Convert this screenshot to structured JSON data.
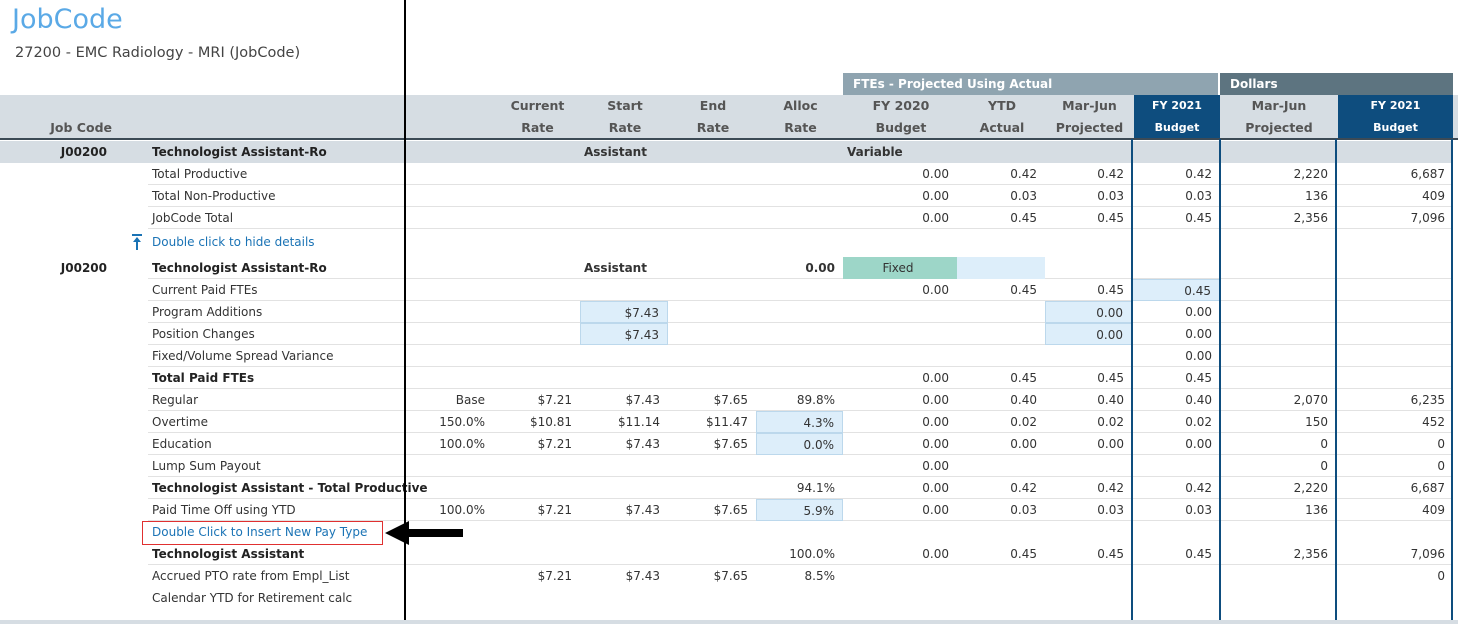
{
  "header": {
    "title": "JobCode",
    "subtitle": "27200 - EMC Radiology - MRI (JobCode)"
  },
  "table": {
    "groups": [
      "FTEs - Projected Using Actual",
      "Dollars"
    ],
    "columns": [
      [
        "Job Code"
      ],
      null,
      null,
      null,
      [
        "Current",
        "Rate"
      ],
      [
        "Start",
        "Rate"
      ],
      [
        "End",
        "Rate"
      ],
      [
        "Alloc",
        "Rate"
      ],
      [
        "FY 2020",
        "Budget"
      ],
      [
        "YTD",
        "Actual"
      ],
      [
        "Mar-Jun",
        "Projected"
      ],
      [
        "FY 2021",
        "Budget"
      ],
      [
        "Mar-Jun",
        "Projected"
      ],
      [
        "FY 2021",
        "Budget"
      ]
    ],
    "rows": [
      [
        "J00200",
        null,
        "Technologist Assistant-Ro",
        null,
        null,
        "Assistant",
        null,
        null,
        "Variable",
        null,
        null,
        null,
        null,
        null
      ],
      [
        null,
        null,
        "Total Productive",
        null,
        null,
        null,
        null,
        null,
        "0.00",
        "0.42",
        "0.42",
        "0.42",
        "2,220",
        "6,687"
      ],
      [
        null,
        null,
        "Total Non-Productive",
        null,
        null,
        null,
        null,
        null,
        "0.00",
        "0.03",
        "0.03",
        "0.03",
        "136",
        "409"
      ],
      [
        null,
        null,
        "JobCode Total",
        null,
        null,
        null,
        null,
        null,
        "0.00",
        "0.45",
        "0.45",
        "0.45",
        "2,356",
        "7,096"
      ],
      [
        null,
        null,
        "Double click to hide details",
        null,
        null,
        null,
        null,
        null,
        null,
        null,
        null,
        null,
        null,
        null
      ],
      [
        "J00200",
        null,
        "Technologist Assistant-Ro",
        null,
        null,
        "Assistant",
        null,
        "0.00",
        "Fixed",
        null,
        null,
        null,
        null,
        null
      ],
      [
        null,
        null,
        "Current Paid FTEs",
        null,
        null,
        null,
        null,
        null,
        "0.00",
        "0.45",
        "0.45",
        "0.45",
        null,
        null
      ],
      [
        null,
        null,
        "Program Additions",
        null,
        null,
        "$7.43",
        null,
        null,
        null,
        null,
        "0.00",
        "0.00",
        null,
        null
      ],
      [
        null,
        null,
        "Position Changes",
        null,
        null,
        "$7.43",
        null,
        null,
        null,
        null,
        "0.00",
        "0.00",
        null,
        null
      ],
      [
        null,
        null,
        "Fixed/Volume Spread Variance",
        null,
        null,
        null,
        null,
        null,
        null,
        null,
        null,
        "0.00",
        null,
        null
      ],
      [
        null,
        null,
        "Total Paid FTEs",
        null,
        null,
        null,
        null,
        null,
        "0.00",
        "0.45",
        "0.45",
        "0.45",
        null,
        null
      ],
      [
        null,
        null,
        "Regular",
        "Base",
        "$7.21",
        "$7.43",
        "$7.65",
        "89.8%",
        "0.00",
        "0.40",
        "0.40",
        "0.40",
        "2,070",
        "6,235"
      ],
      [
        null,
        null,
        "Overtime",
        "150.0%",
        "$10.81",
        "$11.14",
        "$11.47",
        "4.3%",
        "0.00",
        "0.02",
        "0.02",
        "0.02",
        "150",
        "452"
      ],
      [
        null,
        null,
        "Education",
        "100.0%",
        "$7.21",
        "$7.43",
        "$7.65",
        "0.0%",
        "0.00",
        "0.00",
        "0.00",
        "0.00",
        "0",
        "0"
      ],
      [
        null,
        null,
        "Lump Sum Payout",
        null,
        null,
        null,
        null,
        null,
        "0.00",
        null,
        null,
        null,
        "0",
        "0"
      ],
      [
        null,
        null,
        "Technologist Assistant - Total Productive",
        null,
        null,
        null,
        null,
        "94.1%",
        "0.00",
        "0.42",
        "0.42",
        "0.42",
        "2,220",
        "6,687"
      ],
      [
        null,
        null,
        "Paid Time Off using YTD",
        "100.0%",
        "$7.21",
        "$7.43",
        "$7.65",
        "5.9%",
        "0.00",
        "0.03",
        "0.03",
        "0.03",
        "136",
        "409"
      ],
      [
        null,
        null,
        "Double Click to Insert New Pay Type",
        null,
        null,
        null,
        null,
        null,
        null,
        null,
        null,
        null,
        null,
        null
      ],
      [
        null,
        null,
        "Technologist Assistant",
        null,
        null,
        null,
        null,
        "100.0%",
        "0.00",
        "0.45",
        "0.45",
        "0.45",
        "2,356",
        "7,096"
      ],
      [
        null,
        null,
        "Accrued PTO rate from Empl_List",
        null,
        "$7.21",
        "$7.43",
        "$7.65",
        "8.5%",
        null,
        null,
        null,
        null,
        null,
        "0"
      ],
      [
        null,
        null,
        "Calendar YTD for Retirement calc",
        null,
        null,
        null,
        null,
        null,
        null,
        null,
        null,
        null,
        null,
        null
      ]
    ]
  }
}
